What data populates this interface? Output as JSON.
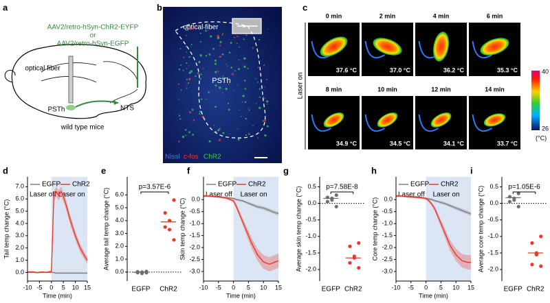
{
  "panel_labels": [
    "a",
    "b",
    "c",
    "d",
    "e",
    "f",
    "g",
    "h",
    "i"
  ],
  "panel_a": {
    "virus_1": "AAV2/retro-hSyn-ChR2-EYFP",
    "or": "or",
    "virus_2": "AAV2/retro-hSyn-EGFP",
    "fiber": "optical fiber",
    "psth": "PSTh",
    "nts": "NTS",
    "mice": "wild type mice"
  },
  "panel_b": {
    "fiber": "optical fiber",
    "region": "PSTh",
    "stain_1": "Nissl",
    "stain_2": "c-fos",
    "stain_3": "ChR2"
  },
  "panel_c": {
    "side_label": "Laser on",
    "frames": [
      {
        "time": "0 min",
        "temp": "37.6 °C"
      },
      {
        "time": "2 min",
        "temp": "37.0 °C"
      },
      {
        "time": "4 min",
        "temp": "36.2 °C"
      },
      {
        "time": "6 min",
        "temp": "35.3 °C"
      },
      {
        "time": "8 min",
        "temp": "34.9 °C"
      },
      {
        "time": "10 min",
        "temp": "34.5 °C"
      },
      {
        "time": "12 min",
        "temp": "34.1 °C"
      },
      {
        "time": "14 min",
        "temp": "33.7 °C"
      }
    ],
    "colorbar_max": 40,
    "colorbar_min": 26,
    "colorbar_unit": "(°C)"
  },
  "chart_data": [
    {
      "type": "line",
      "ylabel": "Tail temp change (°C)",
      "xlabel": "Time (min)",
      "x": [
        -10,
        -8,
        -6,
        -4,
        -2,
        0,
        1,
        2,
        3,
        4,
        5,
        6,
        8,
        10,
        12,
        14,
        15
      ],
      "xlim": [
        -10,
        15
      ],
      "xticks": [
        -10,
        -5,
        0,
        5,
        10,
        15
      ],
      "ylim": [
        -0.7,
        7.8
      ],
      "yticks": [
        {
          "value": 0,
          "label": "0.0"
        },
        {
          "value": 1,
          "label": "1.0"
        },
        {
          "value": 2,
          "label": "2.0"
        },
        {
          "value": 3,
          "label": "3.0"
        },
        {
          "value": 4,
          "label": "4.0"
        },
        {
          "value": 5,
          "label": "5.0"
        },
        {
          "value": 6,
          "label": "6.0"
        },
        {
          "value": 7,
          "label": "7.0"
        }
      ],
      "shade_from": 0,
      "annotations": [
        "Laser off",
        "Laser on"
      ],
      "series": [
        {
          "name": "EGFP",
          "color": "#808080",
          "values": [
            0,
            0.02,
            -0.02,
            0,
            0.02,
            0,
            0,
            -0.05,
            -0.05,
            -0.05,
            -0.05,
            -0.05,
            -0.05,
            -0.05,
            -0.05,
            -0.05,
            -0.05
          ],
          "errors": [
            0.05,
            0.05,
            0.05,
            0.05,
            0.05,
            0.05,
            0.05,
            0.05,
            0.05,
            0.05,
            0.05,
            0.05,
            0.05,
            0.05,
            0.05,
            0.05,
            0.05
          ]
        },
        {
          "name": "ChR2",
          "color": "#e8382c",
          "values": [
            0.05,
            0.05,
            0,
            0.05,
            0,
            0.1,
            6.2,
            6.6,
            6.3,
            6.6,
            6.2,
            5.6,
            4.2,
            3.0,
            2.0,
            1.3,
            1.0
          ],
          "errors": [
            0.05,
            0.05,
            0.05,
            0.05,
            0.05,
            0.1,
            0.4,
            0.4,
            0.4,
            0.4,
            0.4,
            0.4,
            0.4,
            0.35,
            0.35,
            0.3,
            0.3
          ]
        }
      ]
    },
    {
      "type": "dot",
      "ylabel": "Average tail temp change (°C)",
      "ylim": [
        -0.7,
        7.4
      ],
      "yticks": [
        {
          "value": 0,
          "label": "0.0"
        },
        {
          "value": 1,
          "label": "1.0"
        },
        {
          "value": 2,
          "label": "2.0"
        },
        {
          "value": 3,
          "label": "3.0"
        },
        {
          "value": 4,
          "label": "4.0"
        },
        {
          "value": 5,
          "label": "5.0"
        },
        {
          "value": 6,
          "label": "6.0"
        }
      ],
      "ref_line": 0,
      "annotation": "p=3.57E-6",
      "groups": [
        {
          "name": "EGFP",
          "color": "#6e6e6e",
          "values": [
            0.05,
            -0.05,
            0,
            -0.1,
            0.02,
            -0.05
          ],
          "mean": -0.02
        },
        {
          "name": "ChR2",
          "color": "#e8382c",
          "values": [
            5.6,
            4.6,
            4.0,
            3.3,
            3.5,
            2.5
          ],
          "mean": 3.9
        }
      ]
    },
    {
      "type": "line",
      "ylabel": "Skin temp change (°C)",
      "xlabel": "Time (min)",
      "x": [
        -10,
        -8,
        -6,
        -4,
        -2,
        0,
        1,
        2,
        3,
        4,
        5,
        6,
        8,
        10,
        12,
        14,
        15
      ],
      "xlim": [
        -10,
        15
      ],
      "xticks": [
        -10,
        -5,
        0,
        5,
        10,
        15
      ],
      "ylim": [
        -3.4,
        0.95
      ],
      "yticks": [
        {
          "value": 0,
          "label": "0.0"
        },
        -0.5,
        {
          "value": -1,
          "label": "-1.0"
        },
        -1.5,
        {
          "value": -2,
          "label": "-2.0"
        },
        -2.5,
        {
          "value": -3,
          "label": "-3.0"
        }
      ],
      "shade_from": 0,
      "annotations": [
        "Laser off",
        "Laser on"
      ],
      "series": [
        {
          "name": "EGFP",
          "color": "#808080",
          "values": [
            0.15,
            0.15,
            0.12,
            0.1,
            0.08,
            0.05,
            0,
            -0.02,
            -0.05,
            -0.1,
            -0.15,
            -0.2,
            -0.3,
            -0.35,
            -0.45,
            -0.55,
            -0.58
          ],
          "errors": [
            0.04,
            0.04,
            0.04,
            0.04,
            0.04,
            0.04,
            0.05,
            0.05,
            0.05,
            0.05,
            0.06,
            0.06,
            0.07,
            0.07,
            0.08,
            0.08,
            0.08
          ]
        },
        {
          "name": "ChR2",
          "color": "#e8382c",
          "values": [
            0.15,
            0.15,
            0.13,
            0.1,
            0.05,
            -0.05,
            -0.3,
            -0.6,
            -0.9,
            -1.2,
            -1.5,
            -1.8,
            -2.3,
            -2.6,
            -2.7,
            -2.6,
            -2.55
          ],
          "errors": [
            0.04,
            0.04,
            0.04,
            0.04,
            0.05,
            0.08,
            0.1,
            0.12,
            0.15,
            0.18,
            0.2,
            0.22,
            0.25,
            0.28,
            0.3,
            0.3,
            0.3
          ]
        }
      ]
    },
    {
      "type": "dot",
      "ylabel": "Average skin temp change (°C)",
      "ylim": [
        -2.35,
        0.8
      ],
      "yticks": [
        0.5,
        {
          "value": 0,
          "label": "0.0"
        },
        -0.5,
        {
          "value": -1,
          "label": "-1.0"
        },
        -1.5,
        {
          "value": -2,
          "label": "-2.0"
        }
      ],
      "ref_line": 0,
      "annotation": "p=7.58E-8",
      "groups": [
        {
          "name": "EGFP",
          "color": "#6e6e6e",
          "values": [
            0.25,
            0.18,
            0.15,
            0.1,
            0.05,
            -0.1
          ],
          "mean": 0.15
        },
        {
          "name": "ChR2",
          "color": "#e8382c",
          "values": [
            -1.2,
            -1.3,
            -1.6,
            -1.65,
            -1.8,
            -1.95
          ],
          "mean": -1.65
        }
      ]
    },
    {
      "type": "line",
      "ylabel": "Core temp change (°C)",
      "xlabel": "Time (min)",
      "x": [
        -10,
        -8,
        -6,
        -4,
        -2,
        0,
        1,
        2,
        3,
        4,
        5,
        6,
        8,
        10,
        12,
        14,
        15
      ],
      "xlim": [
        -10,
        15
      ],
      "xticks": [
        -10,
        -5,
        0,
        5,
        10,
        15
      ],
      "ylim": [
        -3.4,
        0.95
      ],
      "yticks": [
        {
          "value": 0,
          "label": "0.0"
        },
        -0.5,
        {
          "value": -1,
          "label": "-1.0"
        },
        -1.5,
        {
          "value": -2,
          "label": "-2.0"
        },
        -2.5,
        {
          "value": -3,
          "label": "-3.0"
        }
      ],
      "shade_from": 0,
      "annotations": [
        "Laser off",
        "Laser on"
      ],
      "series": [
        {
          "name": "EGFP",
          "color": "#808080",
          "values": [
            0.15,
            0.15,
            0.12,
            0.12,
            0.1,
            0.05,
            0.03,
            0,
            -0.05,
            -0.08,
            -0.12,
            -0.15,
            -0.25,
            -0.35,
            -0.45,
            -0.55,
            -0.6
          ],
          "errors": [
            0.04,
            0.04,
            0.04,
            0.04,
            0.04,
            0.04,
            0.05,
            0.05,
            0.05,
            0.05,
            0.06,
            0.06,
            0.07,
            0.07,
            0.08,
            0.08,
            0.08
          ]
        },
        {
          "name": "ChR2",
          "color": "#e8382c",
          "values": [
            0.15,
            0.15,
            0.12,
            0.1,
            0.08,
            0.05,
            -0.05,
            -0.2,
            -0.4,
            -0.7,
            -1.0,
            -1.3,
            -1.9,
            -2.3,
            -2.55,
            -2.62,
            -2.62
          ],
          "errors": [
            0.04,
            0.04,
            0.04,
            0.04,
            0.04,
            0.05,
            0.06,
            0.08,
            0.1,
            0.12,
            0.15,
            0.18,
            0.22,
            0.25,
            0.28,
            0.3,
            0.3
          ]
        }
      ]
    },
    {
      "type": "dot",
      "ylabel": "Average core temp change (°C)",
      "ylim": [
        -2.35,
        0.8
      ],
      "yticks": [
        0.5,
        {
          "value": 0,
          "label": "0.0"
        },
        -0.5,
        {
          "value": -1,
          "label": "-1.0"
        },
        -1.5,
        {
          "value": -2,
          "label": "-2.0"
        }
      ],
      "ref_line": 0,
      "annotation": "p=1.05E-6",
      "groups": [
        {
          "name": "EGFP",
          "color": "#6e6e6e",
          "values": [
            0.3,
            0.2,
            0.15,
            0.1,
            0.05,
            -0.1
          ],
          "mean": 0.17
        },
        {
          "name": "ChR2",
          "color": "#e8382c",
          "values": [
            -1.0,
            -1.2,
            -1.5,
            -1.55,
            -1.85,
            -1.9
          ],
          "mean": -1.5
        }
      ]
    }
  ]
}
